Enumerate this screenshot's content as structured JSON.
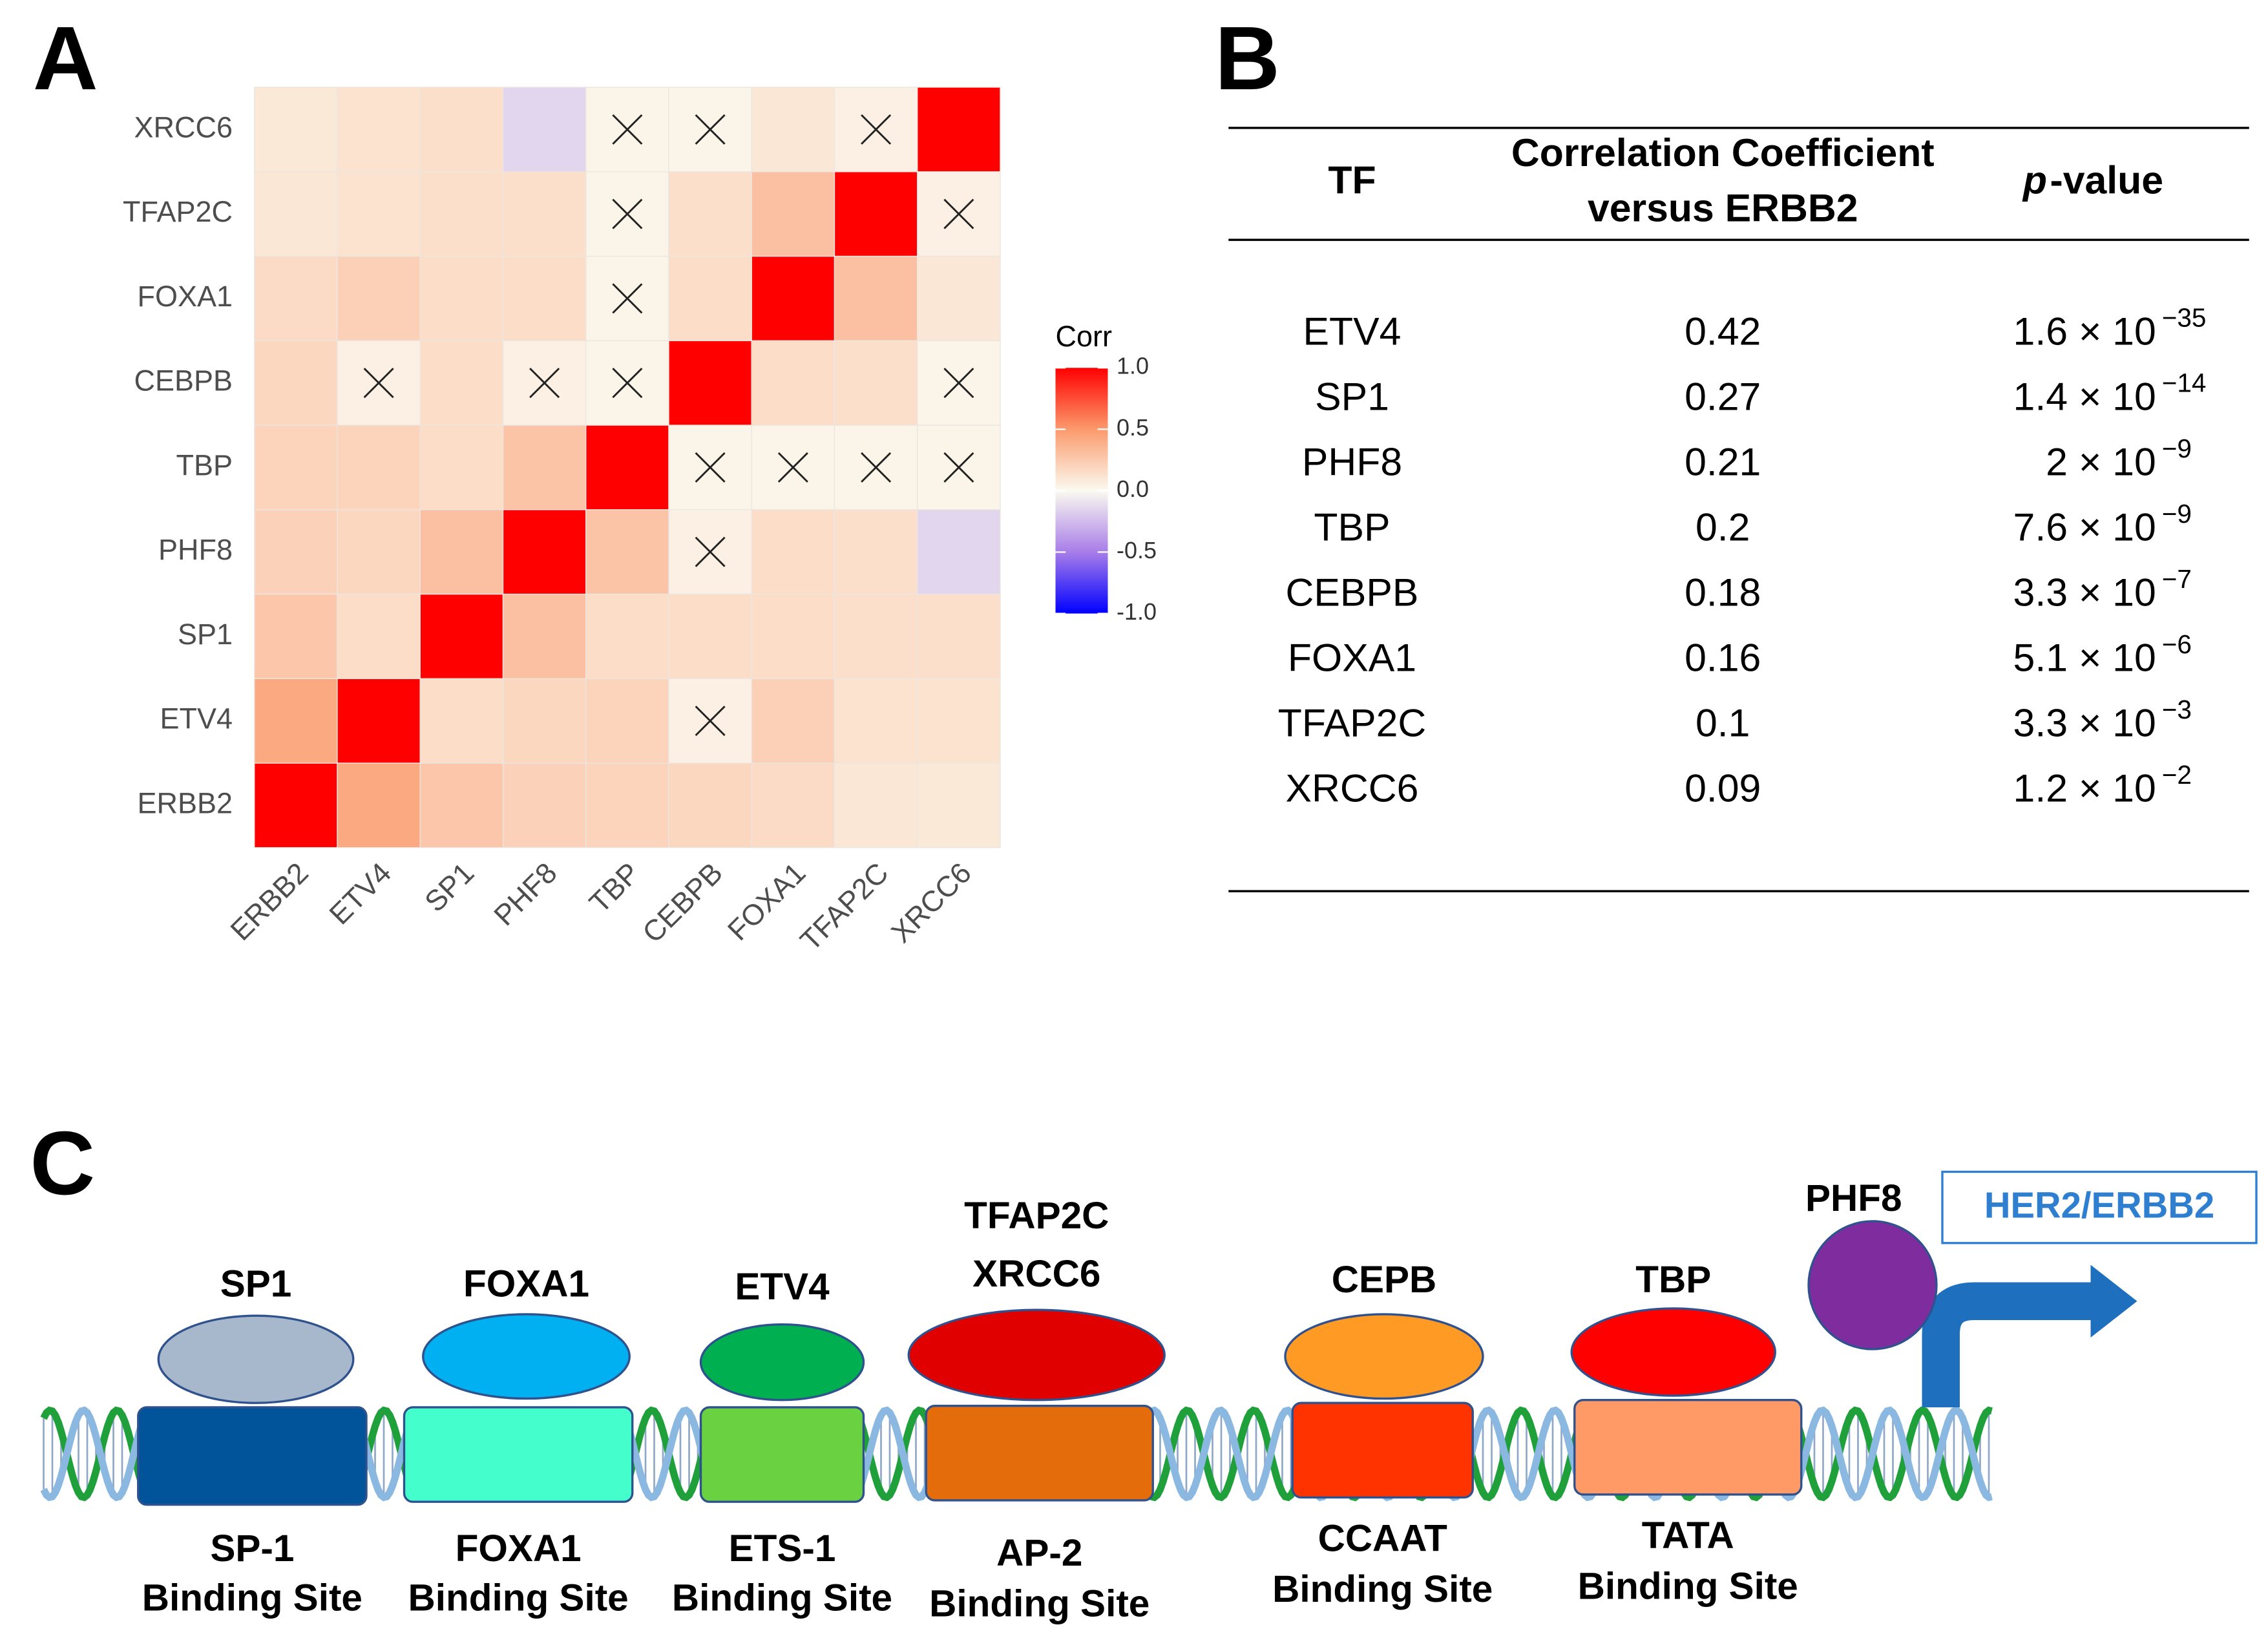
{
  "panel_labels": [
    "A",
    "B",
    "C"
  ],
  "chart_data": {
    "type": "heatmap",
    "categories": [
      "ERBB2",
      "ETV4",
      "SP1",
      "PHF8",
      "TBP",
      "CEBPB",
      "FOXA1",
      "TFAP2C",
      "XRCC6"
    ],
    "values": [
      [
        1,
        0.42,
        0.27,
        0.21,
        0.2,
        0.18,
        0.16,
        0.1,
        0.09
      ],
      [
        0.42,
        1,
        0.15,
        0.18,
        0.2,
        0.05,
        0.22,
        0.12,
        0.12
      ],
      [
        0.27,
        0.15,
        1,
        0.3,
        0.15,
        0.15,
        0.15,
        0.14,
        0.14
      ],
      [
        0.21,
        0.18,
        0.3,
        1,
        0.28,
        0.05,
        0.15,
        0.14,
        -0.15
      ],
      [
        0.2,
        0.2,
        0.15,
        0.28,
        1,
        0.03,
        0.03,
        0.03,
        0.03
      ],
      [
        0.18,
        0.05,
        0.15,
        0.05,
        0.03,
        1,
        0.15,
        0.14,
        0.03
      ],
      [
        0.16,
        0.22,
        0.15,
        0.15,
        0.03,
        0.15,
        1,
        0.3,
        0.1
      ],
      [
        0.1,
        0.12,
        0.14,
        0.14,
        0.03,
        0.14,
        0.3,
        1,
        0.05
      ],
      [
        0.09,
        0.12,
        0.14,
        -0.15,
        0.03,
        0.03,
        0.1,
        0.05,
        1
      ]
    ],
    "crossed": [
      [
        false,
        false,
        false,
        false,
        false,
        false,
        false,
        false,
        false
      ],
      [
        false,
        false,
        false,
        false,
        false,
        true,
        false,
        false,
        false
      ],
      [
        false,
        false,
        false,
        false,
        false,
        false,
        false,
        false,
        false
      ],
      [
        false,
        false,
        false,
        false,
        false,
        true,
        false,
        false,
        false
      ],
      [
        false,
        false,
        false,
        false,
        false,
        true,
        true,
        true,
        true
      ],
      [
        false,
        true,
        false,
        true,
        true,
        false,
        false,
        false,
        true
      ],
      [
        false,
        false,
        false,
        false,
        true,
        false,
        false,
        false,
        false
      ],
      [
        false,
        false,
        false,
        false,
        true,
        false,
        false,
        false,
        true
      ],
      [
        false,
        false,
        false,
        false,
        true,
        true,
        false,
        true,
        false
      ]
    ],
    "legend_title": "Corr",
    "clim": [
      -1,
      1
    ],
    "colorbar_ticks": [
      {
        "value": 1,
        "label": "1.0"
      },
      0.5,
      {
        "value": 0,
        "label": "0.0"
      },
      -0.5,
      {
        "value": -1,
        "label": "-1.0"
      }
    ],
    "colorbar_colors": [
      "#ff0000",
      "#fb9a6c",
      "#fbfaf0",
      "#a87de8",
      "#0000ff"
    ]
  },
  "table": {
    "header_tf": "TF",
    "header_corr": [
      "Correlation Coefficient",
      "versus ERBB2"
    ],
    "header_p_italic": "p",
    "header_p_rest": "-value",
    "rows": [
      {
        "tf": "ETV4",
        "corr": 0.42,
        "p_base": "1.6 × 10",
        "p_exp": "−35"
      },
      {
        "tf": "SP1",
        "corr": 0.27,
        "p_base": "1.4 × 10",
        "p_exp": "−14"
      },
      {
        "tf": "PHF8",
        "corr": 0.21,
        "p_base": "2 × 10",
        "p_exp": "−9"
      },
      {
        "tf": "TBP",
        "corr": 0.2,
        "p_base": "7.6 × 10",
        "p_exp": "−9"
      },
      {
        "tf": "CEBPB",
        "corr": 0.18,
        "p_base": "3.3 × 10",
        "p_exp": "−7"
      },
      {
        "tf": "FOXA1",
        "corr": 0.16,
        "p_base": "5.1 × 10",
        "p_exp": "−6"
      },
      {
        "tf": "TFAP2C",
        "corr": 0.1,
        "p_base": "3.3 × 10",
        "p_exp": "−3"
      },
      {
        "tf": "XRCC6",
        "corr": 0.09,
        "p_base": "1.2 × 10",
        "p_exp": "−2"
      }
    ]
  },
  "diagram": {
    "factors": [
      {
        "protein": [
          "SP1"
        ],
        "protein_color": "#a8b8cc",
        "site": [
          "SP-1",
          "Binding Site"
        ],
        "site_color": "#02549a"
      },
      {
        "protein": [
          "FOXA1"
        ],
        "protein_color": "#00b0f0",
        "site": [
          "FOXA1",
          "Binding Site"
        ],
        "site_color": "#44ffcc"
      },
      {
        "protein": [
          "ETV4"
        ],
        "protein_color": "#00b050",
        "site": [
          "ETS-1",
          "Binding Site"
        ],
        "site_color": "#6ad140"
      },
      {
        "protein": [
          "TFAP2C",
          "XRCC6"
        ],
        "protein_color": "#e00000",
        "site": [
          "AP-2",
          "Binding Site"
        ],
        "site_color": "#e46c0a"
      },
      {
        "protein": [
          "CEPB"
        ],
        "protein_color": "#ff9b25",
        "site": [
          "CCAAT",
          "Binding Site"
        ],
        "site_color": "#ff3300"
      },
      {
        "protein": [
          "TBP"
        ],
        "protein_color": "#ff0000",
        "site": [
          "TATA",
          "Binding Site"
        ],
        "site_color": "#ff9966"
      }
    ],
    "cofactor": {
      "label": "PHF8",
      "color": "#7f2c9f"
    },
    "target": "HER2/ERBB2"
  }
}
